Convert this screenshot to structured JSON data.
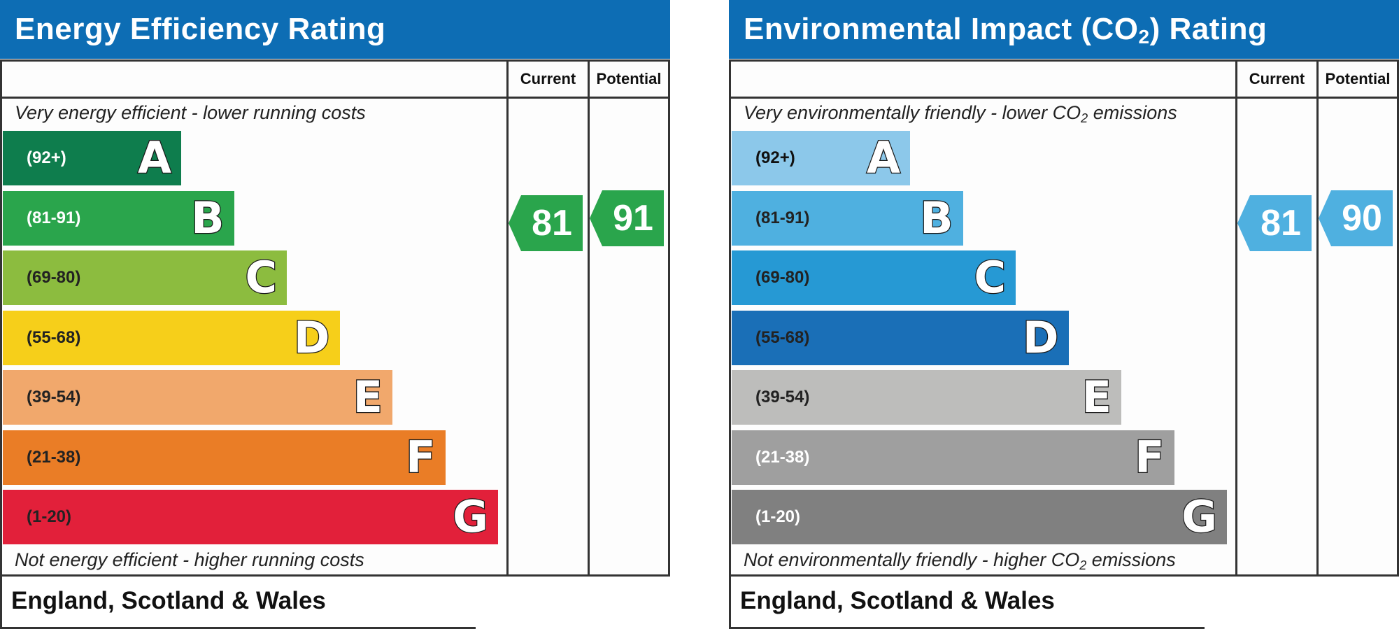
{
  "chart_data": [
    {
      "type": "bar",
      "title": "Energy Efficiency Rating",
      "columns": [
        "Current",
        "Potential"
      ],
      "top_caption": "Very energy efficient - lower running costs",
      "bottom_caption": "Not energy efficient - higher running costs",
      "region": "England, Scotland & Wales",
      "bands": [
        {
          "letter": "A",
          "range": "(92+)",
          "color": "#0e7d4d",
          "text_color": "#ffffff"
        },
        {
          "letter": "B",
          "range": "(81-91)",
          "color": "#2aa54c",
          "text_color": "#ffffff"
        },
        {
          "letter": "C",
          "range": "(69-80)",
          "color": "#8cbc3f",
          "text_color": "#222222"
        },
        {
          "letter": "D",
          "range": "(55-68)",
          "color": "#f6cf1a",
          "text_color": "#222222"
        },
        {
          "letter": "E",
          "range": "(39-54)",
          "color": "#f1a86c",
          "text_color": "#222222"
        },
        {
          "letter": "F",
          "range": "(21-38)",
          "color": "#ea7d26",
          "text_color": "#222222"
        },
        {
          "letter": "G",
          "range": "(1-20)",
          "color": "#e2203a",
          "text_color": "#222222"
        }
      ],
      "current": 81,
      "potential": 91,
      "marker_color": "#2aa54c"
    },
    {
      "type": "bar",
      "title_main": "Environmental Impact (CO",
      "title_sub": "2",
      "title_end": ") Rating",
      "columns": [
        "Current",
        "Potential"
      ],
      "top_caption_main": "Very environmentally friendly - lower CO",
      "top_caption_sub": "2",
      "top_caption_end": " emissions",
      "bottom_caption_main": "Not environmentally friendly - higher CO",
      "bottom_caption_sub": "2",
      "bottom_caption_end": " emissions",
      "region": "England, Scotland & Wales",
      "bands": [
        {
          "letter": "A",
          "range": "(92+)",
          "color": "#8cc8ea",
          "text_color": "#111111"
        },
        {
          "letter": "B",
          "range": "(81-91)",
          "color": "#4fb0e0",
          "text_color": "#222222"
        },
        {
          "letter": "C",
          "range": "(69-80)",
          "color": "#2699d4",
          "text_color": "#222222"
        },
        {
          "letter": "D",
          "range": "(55-68)",
          "color": "#1a6fb7",
          "text_color": "#222222"
        },
        {
          "letter": "E",
          "range": "(39-54)",
          "color": "#bdbdbb",
          "text_color": "#222222"
        },
        {
          "letter": "F",
          "range": "(21-38)",
          "color": "#9f9f9f",
          "text_color": "#ffffff"
        },
        {
          "letter": "G",
          "range": "(1-20)",
          "color": "#808080",
          "text_color": "#ffffff"
        }
      ],
      "current": 81,
      "potential": 90,
      "marker_color": "#4fb0e0"
    }
  ]
}
